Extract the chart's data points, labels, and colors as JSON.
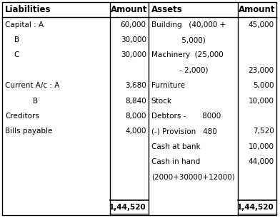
{
  "headers": [
    "Liabilities",
    "Amount",
    "Assets",
    "Amount"
  ],
  "liabilities_rows": [
    [
      "Capital : A",
      "60,000"
    ],
    [
      "    B",
      "30,000"
    ],
    [
      "    C",
      "30,000"
    ],
    [
      "",
      ""
    ],
    [
      "Current A/c : A",
      "3,680"
    ],
    [
      "            B",
      "8,840"
    ],
    [
      "Creditors",
      "8,000"
    ],
    [
      "Bills payable",
      "4,000"
    ],
    [
      "",
      ""
    ],
    [
      "",
      ""
    ],
    [
      "",
      ""
    ],
    [
      "",
      ""
    ],
    [
      "",
      "1,44,520"
    ]
  ],
  "assets_rows": [
    [
      "Building   (40,000 +",
      "45,000"
    ],
    [
      "             5,000)",
      ""
    ],
    [
      "Machinery  (25,000",
      ""
    ],
    [
      "            - 2,000)",
      "23,000"
    ],
    [
      "Furniture",
      "5,000"
    ],
    [
      "Stock",
      "10,000"
    ],
    [
      "Debtors -       8000",
      ""
    ],
    [
      "(-) Provision   480",
      "7,520"
    ],
    [
      "Cash at bank",
      "10,000"
    ],
    [
      "Cash in hand",
      "44,000"
    ],
    [
      "(2000+30000+12000)",
      ""
    ],
    [
      "",
      ""
    ],
    [
      "",
      "1,44,520"
    ]
  ],
  "bg_color": "#ffffff",
  "line_color": "#000000",
  "font_size": 7.5,
  "header_font_size": 8.5
}
